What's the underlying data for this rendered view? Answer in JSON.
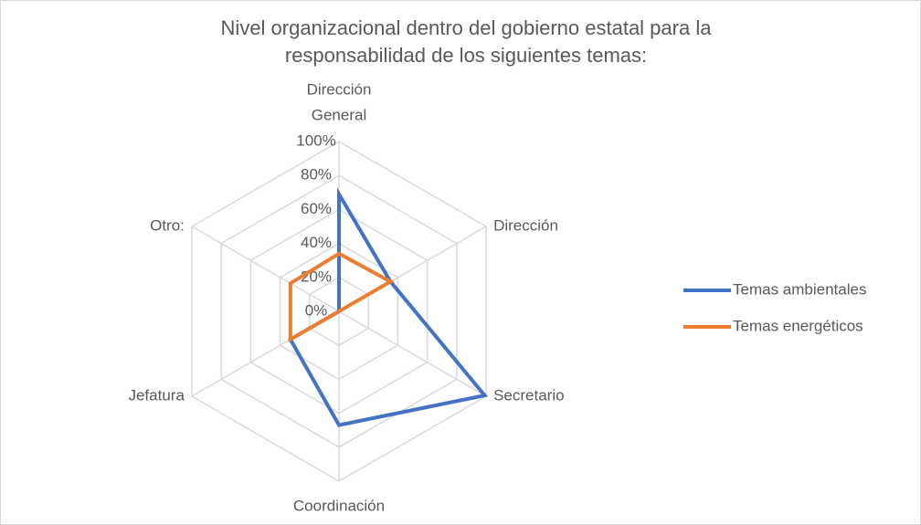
{
  "chart_data": {
    "type": "radar",
    "title": [
      "Nivel organizacional dentro del gobierno estatal para la",
      "responsabilidad de los siguientes temas:"
    ],
    "categories": [
      [
        "Dirección",
        "General"
      ],
      "Dirección",
      "Secretario",
      "Coordinación",
      "Jefatura",
      "Otro:"
    ],
    "series": [
      {
        "name": "Temas ambientales",
        "color": "#4472c4",
        "values": [
          69,
          35,
          99,
          67,
          33,
          0
        ]
      },
      {
        "name": "Temas energéticos",
        "color": "#ed7d31",
        "values": [
          34,
          35,
          0,
          0,
          33,
          33
        ]
      }
    ],
    "rlim": [
      0,
      100
    ],
    "rticks": [
      {
        "value": 0,
        "label": "0%"
      },
      {
        "value": 20,
        "label": "20%"
      },
      {
        "value": 40,
        "label": "40%"
      },
      {
        "value": 60,
        "label": "60%"
      },
      {
        "value": 80,
        "label": "80%"
      },
      {
        "value": 100,
        "label": "100%"
      }
    ],
    "grid": true,
    "legend": "right"
  }
}
